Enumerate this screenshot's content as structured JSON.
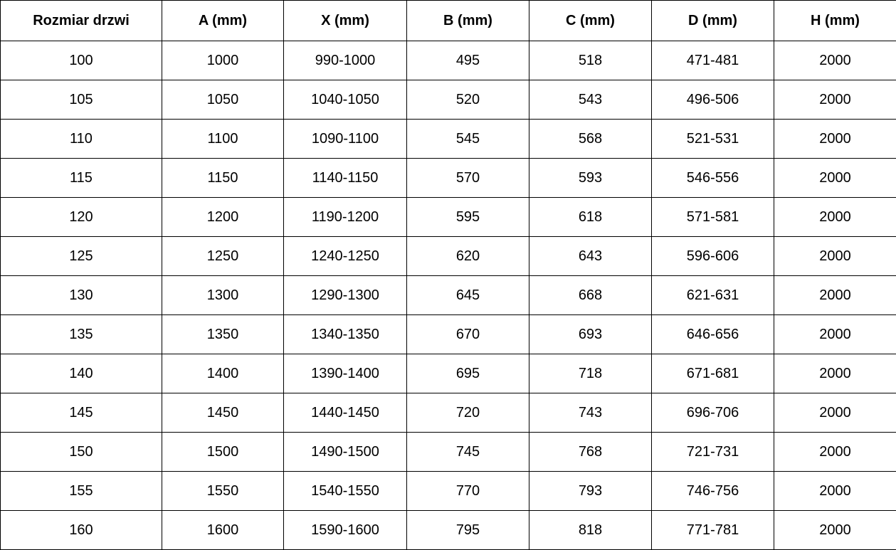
{
  "chart_data": {
    "type": "table",
    "title": "",
    "columns": [
      "Rozmiar drzwi",
      "A (mm)",
      "X (mm)",
      "B (mm)",
      "C (mm)",
      "D (mm)",
      "H (mm)"
    ],
    "rows": [
      [
        "100",
        "1000",
        "990-1000",
        "495",
        "518",
        "471-481",
        "2000"
      ],
      [
        "105",
        "1050",
        "1040-1050",
        "520",
        "543",
        "496-506",
        "2000"
      ],
      [
        "110",
        "1100",
        "1090-1100",
        "545",
        "568",
        "521-531",
        "2000"
      ],
      [
        "115",
        "1150",
        "1140-1150",
        "570",
        "593",
        "546-556",
        "2000"
      ],
      [
        "120",
        "1200",
        "1190-1200",
        "595",
        "618",
        "571-581",
        "2000"
      ],
      [
        "125",
        "1250",
        "1240-1250",
        "620",
        "643",
        "596-606",
        "2000"
      ],
      [
        "130",
        "1300",
        "1290-1300",
        "645",
        "668",
        "621-631",
        "2000"
      ],
      [
        "135",
        "1350",
        "1340-1350",
        "670",
        "693",
        "646-656",
        "2000"
      ],
      [
        "140",
        "1400",
        "1390-1400",
        "695",
        "718",
        "671-681",
        "2000"
      ],
      [
        "145",
        "1450",
        "1440-1450",
        "720",
        "743",
        "696-706",
        "2000"
      ],
      [
        "150",
        "1500",
        "1490-1500",
        "745",
        "768",
        "721-731",
        "2000"
      ],
      [
        "155",
        "1550",
        "1540-1550",
        "770",
        "793",
        "746-756",
        "2000"
      ],
      [
        "160",
        "1600",
        "1590-1600",
        "795",
        "818",
        "771-781",
        "2000"
      ]
    ],
    "layout": {
      "grid": true,
      "border_color": "#000000",
      "background_color": "#ffffff",
      "text_color": "#000000",
      "header_bold": true,
      "text_align": "center"
    }
  }
}
